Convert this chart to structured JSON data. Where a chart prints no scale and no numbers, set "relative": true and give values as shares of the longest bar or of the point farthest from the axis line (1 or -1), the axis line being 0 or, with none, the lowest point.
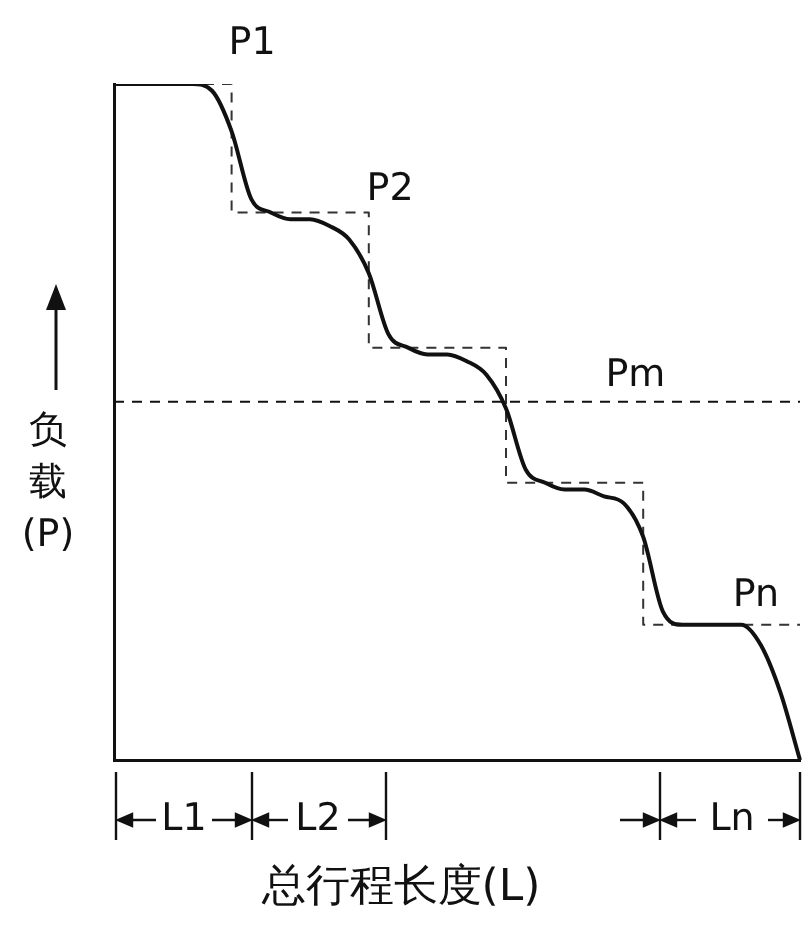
{
  "chart_data": {
    "type": "line",
    "relative": true,
    "xlabel": "总行程长度(L)",
    "ylabel": "负载(P)",
    "legend": false,
    "grid": false,
    "marker": "none",
    "categories": [
      null,
      null,
      null,
      null,
      null,
      null,
      null,
      null,
      null,
      null,
      null,
      null,
      null,
      null,
      null,
      null,
      null,
      null,
      null,
      null,
      null,
      null,
      null,
      null,
      null,
      null,
      null,
      null,
      null,
      null,
      null,
      null,
      null,
      null,
      null,
      null
    ],
    "series": [
      {
        "color": "#111111",
        "values": [
          1,
          1,
          1,
          1,
          1,
          0.99,
          0.93,
          0.83,
          0.81,
          0.8,
          0.8,
          0.79,
          0.77,
          0.72,
          0.63,
          0.61,
          0.6,
          0.6,
          0.59,
          0.57,
          0.52,
          0.43,
          0.41,
          0.4,
          0.4,
          0.39,
          0.38,
          0.33,
          0.22,
          0.2,
          0.2,
          0.2,
          0.2,
          0.17,
          0.1,
          0
        ]
      },
      {
        "type": "step",
        "color": "#333333",
        "line_style": "dashed",
        "values": [
          1,
          1,
          1,
          1,
          1,
          1,
          1,
          0.81,
          0.81,
          0.81,
          0.81,
          0.81,
          0.81,
          0.81,
          0.61,
          0.61,
          0.61,
          0.61,
          0.61,
          0.61,
          0.61,
          0.41,
          0.41,
          0.41,
          0.41,
          0.41,
          0.41,
          0.41,
          0.2,
          0.2,
          0.2,
          0.2,
          0.2,
          0.2,
          0.2,
          0.2
        ]
      }
    ],
    "ref_lines": [
      {
        "axis": "y",
        "value": 0.53,
        "label": "Pm",
        "line_style": "dashed",
        "color": "#111111"
      }
    ],
    "annotations": [
      "P1",
      "P2",
      "Pn",
      "L1",
      "L2",
      "Ln"
    ]
  }
}
